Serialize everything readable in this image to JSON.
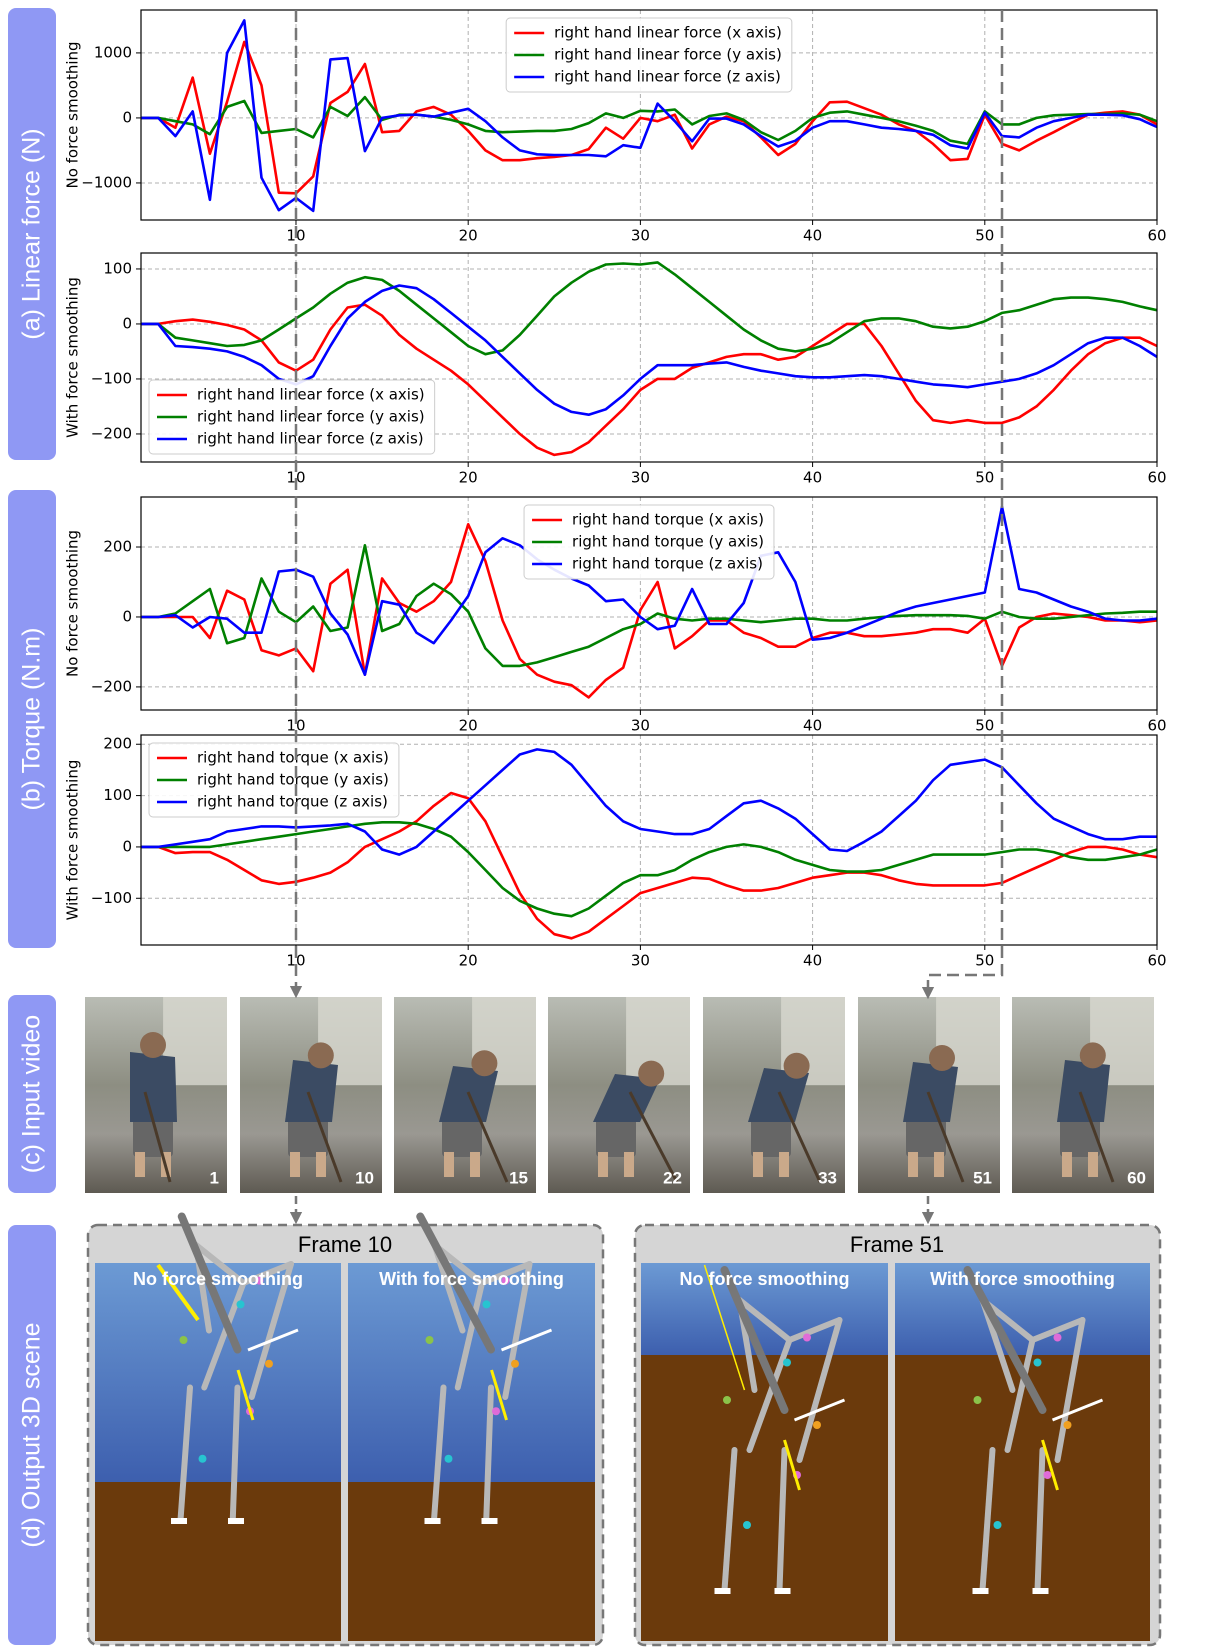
{
  "panel_labels": [
    "(a) Linear force (N)",
    "(b) Torque (N.m)",
    "(c) Input video",
    "(d) Output 3D scene"
  ],
  "video": {
    "frames": [
      1,
      10,
      15,
      22,
      33,
      51,
      60
    ]
  },
  "scenes": [
    {
      "title": "Frame 10",
      "panels": [
        "No force smoothing",
        "With force smoothing"
      ]
    },
    {
      "title": "Frame 51",
      "panels": [
        "No force smoothing",
        "With force smoothing"
      ]
    }
  ],
  "chart_data": [
    {
      "type": "line",
      "ylabel": "No force smoothing",
      "legend": "upper center",
      "grid": true,
      "x": [
        1,
        2,
        3,
        4,
        5,
        6,
        7,
        8,
        9,
        10,
        11,
        12,
        13,
        14,
        15,
        16,
        17,
        18,
        19,
        20,
        21,
        22,
        23,
        24,
        25,
        26,
        27,
        28,
        29,
        30,
        31,
        32,
        33,
        34,
        35,
        36,
        37,
        38,
        39,
        40,
        41,
        42,
        43,
        44,
        45,
        46,
        47,
        48,
        49,
        50,
        51,
        52,
        53,
        54,
        55,
        56,
        57,
        58,
        59,
        60
      ],
      "xlim": [
        1,
        60
      ],
      "xticks": [
        10,
        20,
        30,
        40,
        50,
        60
      ],
      "ylim": [
        -1570,
        1660
      ],
      "yticks": [
        {
          "value": -1000,
          "label": "−1000"
        },
        0,
        1000
      ],
      "series": [
        {
          "name": "right hand linear force (x axis)",
          "color": "#ff0000",
          "values": [
            0,
            0,
            -150,
            620,
            -550,
            250,
            1170,
            500,
            -1150,
            -1160,
            -900,
            230,
            400,
            830,
            -220,
            -200,
            100,
            170,
            50,
            -200,
            -500,
            -650,
            -650,
            -620,
            -600,
            -570,
            -480,
            -150,
            -320,
            0,
            -50,
            50,
            -470,
            -100,
            20,
            -50,
            -300,
            -570,
            -400,
            -50,
            240,
            250,
            150,
            50,
            -100,
            -200,
            -400,
            -650,
            -630,
            50,
            -400,
            -500,
            -350,
            -220,
            -80,
            50,
            80,
            100,
            50,
            -100
          ]
        },
        {
          "name": "right hand linear force (y axis)",
          "color": "#008000",
          "values": [
            0,
            0,
            -50,
            -100,
            -250,
            170,
            260,
            -230,
            -200,
            -170,
            -300,
            170,
            30,
            320,
            -30,
            50,
            50,
            20,
            -30,
            -100,
            -200,
            -220,
            -210,
            -200,
            -200,
            -170,
            -80,
            70,
            0,
            110,
            100,
            130,
            -100,
            30,
            70,
            -30,
            -220,
            -340,
            -200,
            0,
            80,
            100,
            50,
            0,
            -50,
            -120,
            -200,
            -350,
            -400,
            100,
            -100,
            -100,
            0,
            40,
            50,
            60,
            60,
            70,
            50,
            -50
          ]
        },
        {
          "name": "right hand linear force (z axis)",
          "color": "#0000ff",
          "values": [
            0,
            0,
            -280,
            100,
            -1260,
            1000,
            1500,
            -920,
            -1420,
            -1230,
            -1430,
            900,
            920,
            -510,
            0,
            40,
            50,
            20,
            80,
            140,
            -50,
            -300,
            -500,
            -560,
            -570,
            -570,
            -570,
            -590,
            -420,
            -460,
            220,
            -50,
            -360,
            -10,
            -10,
            -100,
            -280,
            -440,
            -350,
            -150,
            -50,
            -50,
            -100,
            -150,
            -170,
            -200,
            -260,
            -420,
            -470,
            80,
            -280,
            -300,
            -150,
            -50,
            0,
            50,
            50,
            40,
            -20,
            -140
          ]
        }
      ]
    },
    {
      "type": "line",
      "ylabel": "With force smoothing",
      "legend": "lower left",
      "grid": true,
      "x": [
        1,
        2,
        3,
        4,
        5,
        6,
        7,
        8,
        9,
        10,
        11,
        12,
        13,
        14,
        15,
        16,
        17,
        18,
        19,
        20,
        21,
        22,
        23,
        24,
        25,
        26,
        27,
        28,
        29,
        30,
        31,
        32,
        33,
        34,
        35,
        36,
        37,
        38,
        39,
        40,
        41,
        42,
        43,
        44,
        45,
        46,
        47,
        48,
        49,
        50,
        51,
        52,
        53,
        54,
        55,
        56,
        57,
        58,
        59,
        60
      ],
      "xlim": [
        1,
        60
      ],
      "xticks": [
        10,
        20,
        30,
        40,
        50,
        60
      ],
      "ylim": [
        -251,
        129
      ],
      "yticks": [
        {
          "value": -200,
          "label": "−200"
        },
        {
          "value": -100,
          "label": "−100"
        },
        0,
        100
      ],
      "series": [
        {
          "name": "right hand linear force (x axis)",
          "color": "#ff0000",
          "values": [
            0,
            0,
            5,
            8,
            4,
            -2,
            -10,
            -30,
            -70,
            -85,
            -65,
            -10,
            30,
            35,
            15,
            -20,
            -45,
            -65,
            -85,
            -110,
            -140,
            -170,
            -200,
            -225,
            -238,
            -233,
            -215,
            -185,
            -155,
            -120,
            -100,
            -100,
            -80,
            -70,
            -60,
            -55,
            -55,
            -65,
            -60,
            -40,
            -20,
            0,
            0,
            -40,
            -90,
            -140,
            -175,
            -180,
            -175,
            -180,
            -180,
            -170,
            -150,
            -120,
            -85,
            -55,
            -35,
            -25,
            -25,
            -40
          ]
        },
        {
          "name": "right hand linear force (y axis)",
          "color": "#008000",
          "values": [
            0,
            0,
            -25,
            -30,
            -35,
            -40,
            -38,
            -30,
            -10,
            10,
            30,
            55,
            75,
            85,
            80,
            60,
            35,
            10,
            -15,
            -40,
            -55,
            -48,
            -20,
            15,
            50,
            75,
            95,
            108,
            110,
            108,
            112,
            90,
            65,
            40,
            15,
            -10,
            -30,
            -45,
            -50,
            -45,
            -35,
            -15,
            5,
            10,
            10,
            5,
            -5,
            -8,
            -5,
            5,
            20,
            25,
            35,
            45,
            48,
            48,
            45,
            40,
            32,
            25
          ]
        },
        {
          "name": "right hand linear force (z axis)",
          "color": "#0000ff",
          "values": [
            0,
            0,
            -40,
            -42,
            -45,
            -50,
            -60,
            -75,
            -100,
            -110,
            -95,
            -40,
            10,
            40,
            60,
            70,
            65,
            45,
            20,
            -5,
            -30,
            -60,
            -90,
            -120,
            -145,
            -160,
            -165,
            -155,
            -130,
            -100,
            -75,
            -75,
            -75,
            -72,
            -70,
            -78,
            -85,
            -90,
            -95,
            -97,
            -97,
            -95,
            -93,
            -95,
            -100,
            -105,
            -110,
            -112,
            -115,
            -110,
            -105,
            -100,
            -90,
            -75,
            -55,
            -35,
            -25,
            -25,
            -40,
            -60
          ]
        }
      ]
    },
    {
      "type": "line",
      "ylabel": "No force smoothing",
      "legend": "upper center",
      "grid": true,
      "x": [
        1,
        2,
        3,
        4,
        5,
        6,
        7,
        8,
        9,
        10,
        11,
        12,
        13,
        14,
        15,
        16,
        17,
        18,
        19,
        20,
        21,
        22,
        23,
        24,
        25,
        26,
        27,
        28,
        29,
        30,
        31,
        32,
        33,
        34,
        35,
        36,
        37,
        38,
        39,
        40,
        41,
        42,
        43,
        44,
        45,
        46,
        47,
        48,
        49,
        50,
        51,
        52,
        53,
        54,
        55,
        56,
        57,
        58,
        59,
        60
      ],
      "xlim": [
        1,
        60
      ],
      "xticks": [
        10,
        20,
        30,
        40,
        50,
        60
      ],
      "ylim": [
        -266,
        343
      ],
      "yticks": [
        {
          "value": -200,
          "label": "−200"
        },
        0,
        200
      ],
      "series": [
        {
          "name": "right hand torque (x axis)",
          "color": "#ff0000",
          "values": [
            0,
            0,
            0,
            0,
            -60,
            75,
            50,
            -95,
            -110,
            -90,
            -155,
            95,
            135,
            -165,
            110,
            40,
            15,
            45,
            100,
            265,
            160,
            -10,
            -120,
            -165,
            -185,
            -195,
            -230,
            -180,
            -145,
            20,
            100,
            -90,
            -55,
            -10,
            -10,
            -45,
            -60,
            -85,
            -85,
            -60,
            -45,
            -45,
            -55,
            -55,
            -50,
            -45,
            -35,
            -35,
            -45,
            -5,
            -140,
            -30,
            0,
            10,
            5,
            0,
            -10,
            -10,
            -15,
            -10
          ]
        },
        {
          "name": "right hand torque (y axis)",
          "color": "#008000",
          "values": [
            0,
            0,
            10,
            45,
            80,
            -75,
            -60,
            110,
            15,
            -15,
            30,
            -40,
            -30,
            205,
            -40,
            -20,
            60,
            95,
            65,
            15,
            -90,
            -140,
            -140,
            -130,
            -115,
            -100,
            -85,
            -60,
            -35,
            -20,
            10,
            -5,
            -10,
            -5,
            -5,
            -10,
            -15,
            -10,
            -5,
            -5,
            -10,
            -10,
            -5,
            0,
            3,
            5,
            5,
            5,
            3,
            -5,
            15,
            0,
            -5,
            -5,
            0,
            5,
            10,
            12,
            15,
            15
          ]
        },
        {
          "name": "right hand torque (z axis)",
          "color": "#0000ff",
          "values": [
            0,
            0,
            5,
            -30,
            0,
            -5,
            -45,
            -45,
            130,
            135,
            115,
            10,
            -50,
            -165,
            45,
            35,
            -45,
            -75,
            -10,
            60,
            185,
            225,
            205,
            165,
            135,
            110,
            90,
            45,
            50,
            0,
            -35,
            -25,
            80,
            -20,
            -20,
            40,
            175,
            185,
            100,
            -65,
            -60,
            -45,
            -25,
            -5,
            15,
            30,
            40,
            50,
            60,
            70,
            315,
            80,
            70,
            50,
            30,
            15,
            -5,
            -10,
            -10,
            -5
          ]
        }
      ]
    },
    {
      "type": "line",
      "ylabel": "With force smoothing",
      "legend": "upper left",
      "grid": true,
      "x": [
        1,
        2,
        3,
        4,
        5,
        6,
        7,
        8,
        9,
        10,
        11,
        12,
        13,
        14,
        15,
        16,
        17,
        18,
        19,
        20,
        21,
        22,
        23,
        24,
        25,
        26,
        27,
        28,
        29,
        30,
        31,
        32,
        33,
        34,
        35,
        36,
        37,
        38,
        39,
        40,
        41,
        42,
        43,
        44,
        45,
        46,
        47,
        48,
        49,
        50,
        51,
        52,
        53,
        54,
        55,
        56,
        57,
        58,
        59,
        60
      ],
      "xlim": [
        1,
        60
      ],
      "xticks": [
        10,
        20,
        30,
        40,
        50,
        60
      ],
      "ylim": [
        -191,
        218
      ],
      "yticks": [
        {
          "value": -100,
          "label": "−100"
        },
        0,
        100,
        200
      ],
      "series": [
        {
          "name": "right hand torque (x axis)",
          "color": "#ff0000",
          "values": [
            0,
            0,
            -12,
            -10,
            -10,
            -25,
            -45,
            -65,
            -72,
            -68,
            -60,
            -50,
            -30,
            0,
            15,
            30,
            50,
            80,
            105,
            95,
            50,
            -20,
            -90,
            -140,
            -170,
            -178,
            -165,
            -140,
            -115,
            -90,
            -80,
            -70,
            -60,
            -62,
            -75,
            -85,
            -85,
            -80,
            -70,
            -60,
            -55,
            -50,
            -50,
            -55,
            -65,
            -72,
            -75,
            -75,
            -75,
            -75,
            -70,
            -55,
            -40,
            -25,
            -10,
            0,
            0,
            -5,
            -15,
            -20
          ]
        },
        {
          "name": "right hand torque (y axis)",
          "color": "#008000",
          "values": [
            0,
            0,
            0,
            0,
            0,
            5,
            10,
            15,
            20,
            25,
            30,
            35,
            40,
            45,
            48,
            48,
            45,
            35,
            20,
            -10,
            -45,
            -80,
            -105,
            -120,
            -130,
            -135,
            -120,
            -95,
            -70,
            -55,
            -55,
            -45,
            -25,
            -10,
            0,
            5,
            0,
            -10,
            -25,
            -35,
            -45,
            -48,
            -48,
            -45,
            -35,
            -25,
            -15,
            -15,
            -15,
            -15,
            -10,
            -5,
            -5,
            -10,
            -20,
            -25,
            -25,
            -20,
            -15,
            -5
          ]
        },
        {
          "name": "right hand torque (z axis)",
          "color": "#0000ff",
          "values": [
            0,
            0,
            5,
            10,
            15,
            30,
            35,
            40,
            40,
            38,
            40,
            42,
            45,
            30,
            -5,
            -15,
            0,
            30,
            60,
            90,
            120,
            150,
            180,
            190,
            185,
            160,
            120,
            80,
            50,
            35,
            30,
            25,
            25,
            35,
            60,
            85,
            90,
            75,
            55,
            25,
            -5,
            -8,
            10,
            30,
            60,
            90,
            130,
            160,
            165,
            170,
            155,
            120,
            85,
            55,
            40,
            25,
            15,
            15,
            20,
            20
          ]
        }
      ]
    }
  ]
}
